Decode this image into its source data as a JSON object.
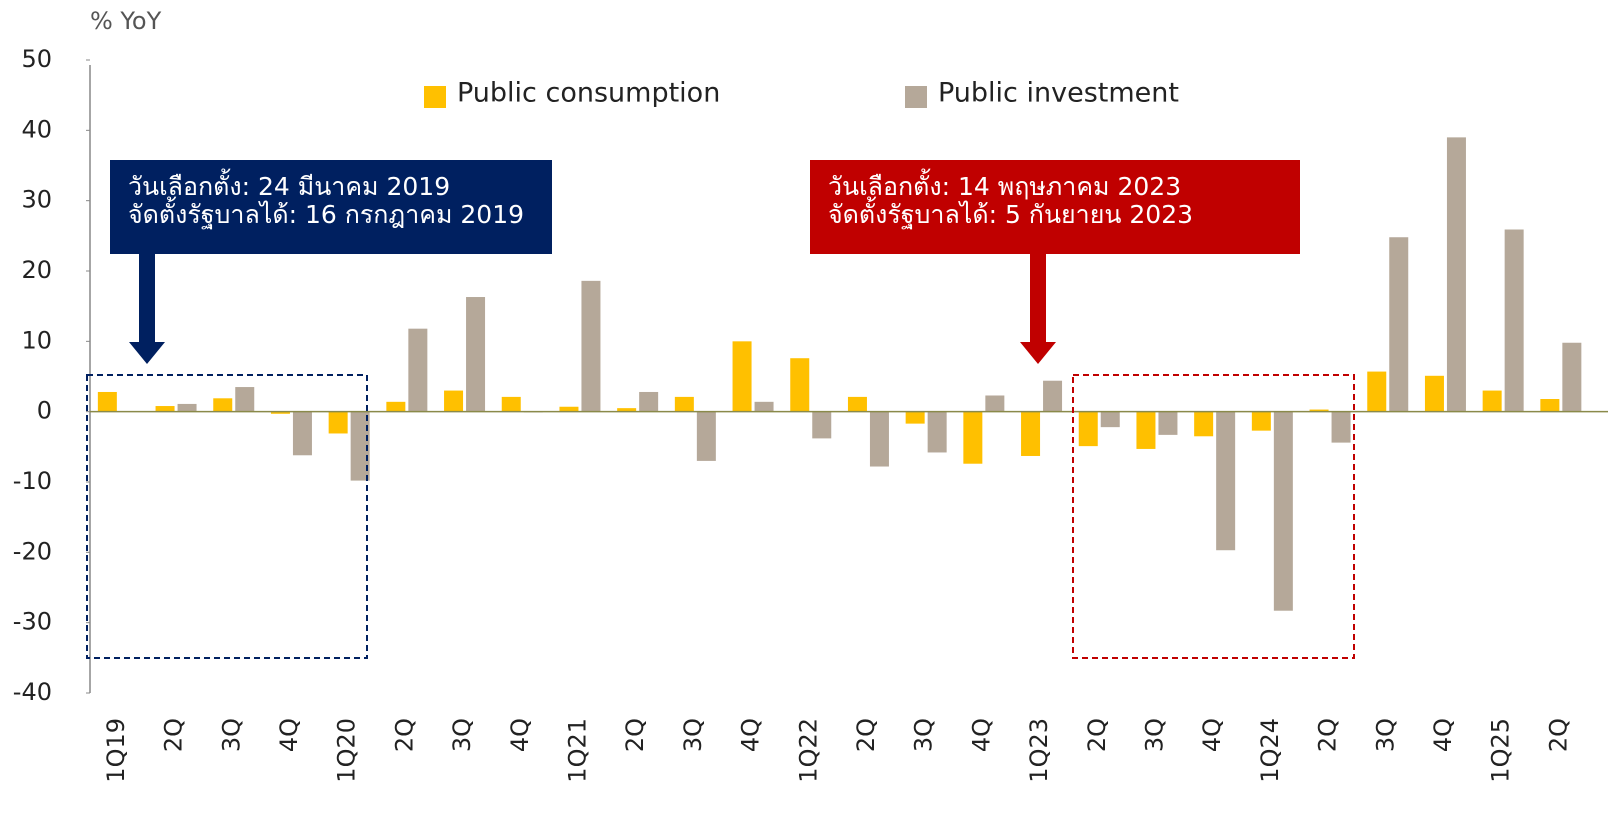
{
  "chart_data": {
    "type": "bar",
    "y_axis_label": "% YoY",
    "categories": [
      "1Q19",
      "2Q",
      "3Q",
      "4Q",
      "1Q20",
      "2Q",
      "3Q",
      "4Q",
      "1Q21",
      "2Q",
      "3Q",
      "4Q",
      "1Q22",
      "2Q",
      "3Q",
      "4Q",
      "1Q23",
      "2Q",
      "3Q",
      "4Q",
      "1Q24",
      "2Q",
      "3Q",
      "4Q",
      "1Q25",
      "2Q"
    ],
    "series": [
      {
        "name": "Public consumption",
        "color": "#ffc000",
        "values": [
          2.8,
          0.8,
          1.9,
          -0.3,
          -3.1,
          1.4,
          3.0,
          2.1,
          0.7,
          0.5,
          2.1,
          10.0,
          7.6,
          2.1,
          -1.7,
          -7.4,
          -6.3,
          -4.9,
          -5.3,
          -3.5,
          -2.7,
          0.3,
          5.7,
          5.1,
          3.0,
          1.8
        ]
      },
      {
        "name": "Public investment",
        "color": "#b5a899",
        "values": [
          0,
          1.1,
          3.5,
          -6.2,
          -9.8,
          11.8,
          16.3,
          -0.1,
          18.6,
          2.8,
          -7.0,
          1.4,
          -3.8,
          -7.8,
          -5.8,
          2.3,
          4.4,
          -2.2,
          -3.3,
          -19.7,
          -28.3,
          -4.4,
          24.8,
          39.0,
          25.9,
          9.8
        ]
      }
    ],
    "ylim": [
      -40,
      50
    ],
    "yticks": [
      -40,
      -30,
      -20,
      -10,
      0,
      10,
      20,
      30,
      40,
      50
    ],
    "annotations": [
      {
        "lines": [
          "วันเลือกตั้ง: 24 มีนาคม  2019",
          "จัดตั้งรัฐบาลได้: 16 กรกฎาคม 2019"
        ],
        "color": "#002060"
      },
      {
        "lines": [
          "วันเลือกตั้ง: 14 พฤษภาคม 2023",
          "จัดตั้งรัฐบาลได้: 5 กันยายน 2023"
        ],
        "color": "#c00000"
      }
    ]
  }
}
